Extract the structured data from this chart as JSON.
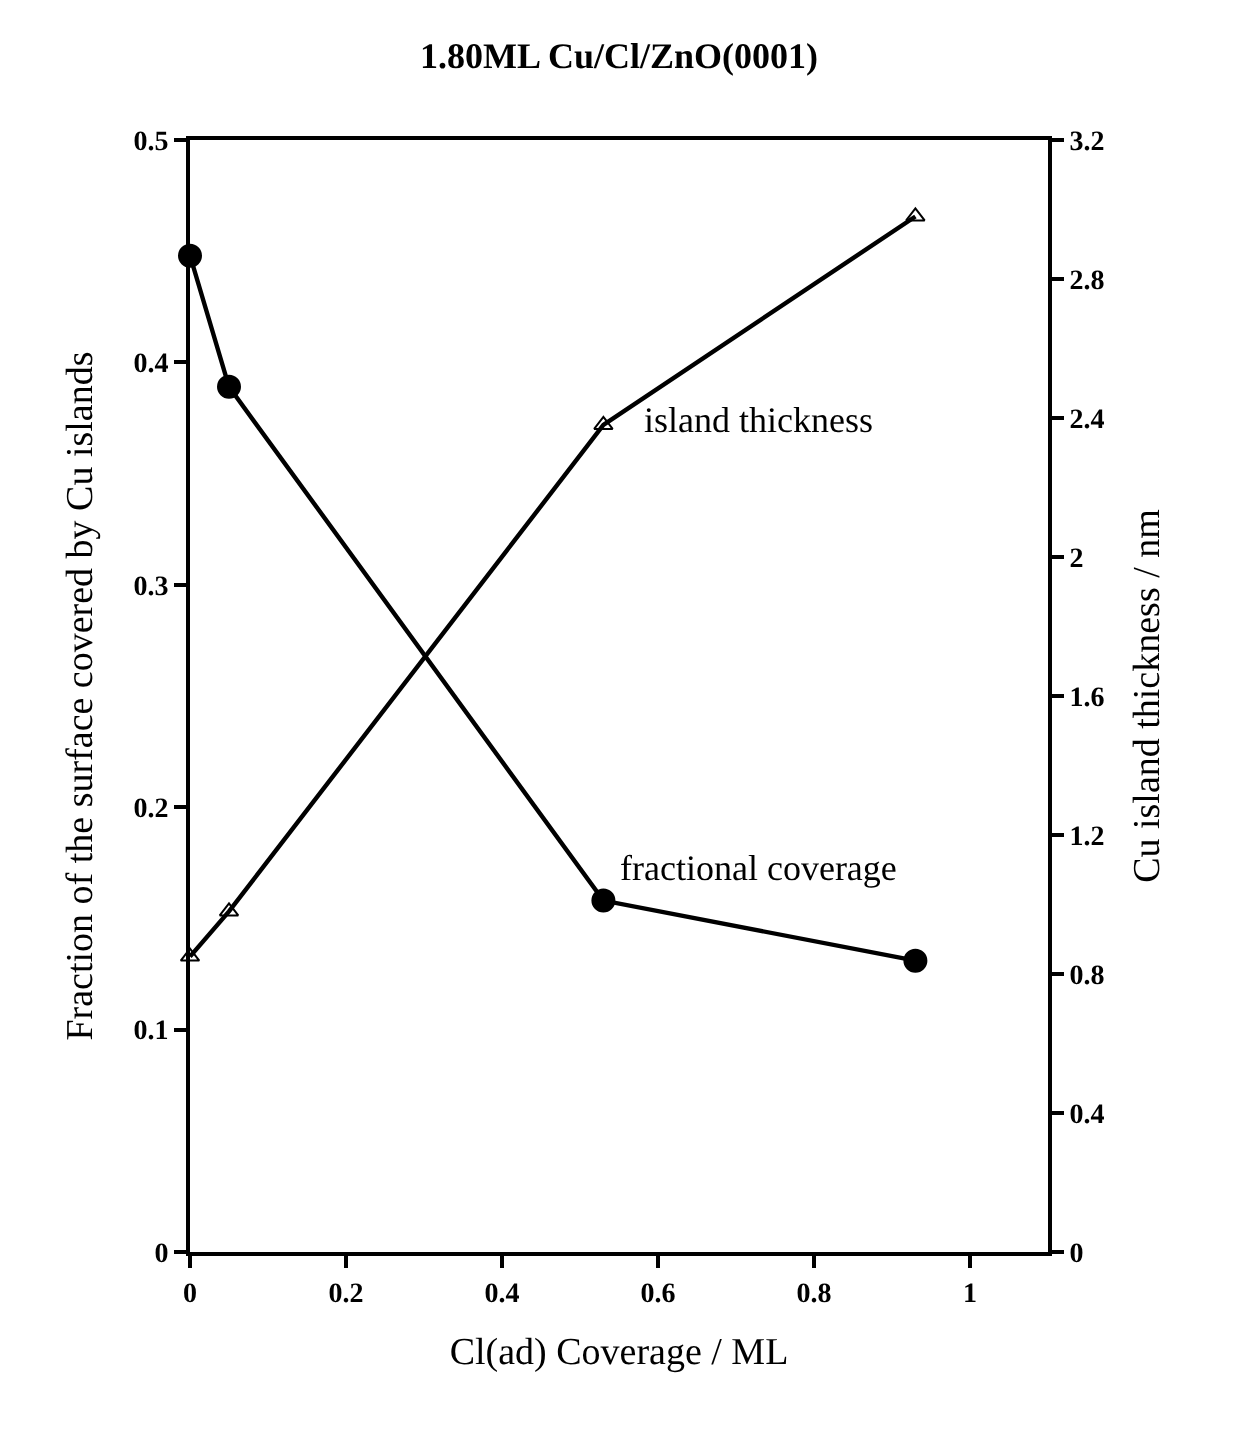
{
  "chart_data": {
    "type": "line",
    "title": "1.80ML Cu/Cl/ZnO(0001)",
    "xlabel": "Cl(ad) Coverage / ML",
    "ylabel": "Fraction of the surface covered by Cu islands",
    "y2label": "Cu island thickness / nm",
    "x": [
      0,
      0.05,
      0.53,
      0.93
    ],
    "series": [
      {
        "name": "fractional coverage",
        "color": "#000000",
        "marker": "circle",
        "values": [
          0.448,
          0.389,
          0.158,
          0.131
        ]
      },
      {
        "name": "island thickness",
        "color": "#000000",
        "marker": "triangle",
        "axis": "y2",
        "values": [
          0.85,
          0.98,
          2.38,
          2.98
        ]
      }
    ],
    "xlim": [
      0,
      1.1
    ],
    "xticks": [
      0,
      0.2,
      0.4,
      0.6,
      0.8,
      1
    ],
    "ylim": [
      0,
      0.5
    ],
    "yticks": [
      0,
      0.1,
      0.2,
      0.3,
      0.4,
      0.5
    ],
    "y2lim": [
      0,
      3.2
    ],
    "y2ticks": [
      0,
      0.4,
      0.8,
      1.2,
      1.6,
      2,
      2.4,
      2.8,
      3.2
    ],
    "line_style": "solid"
  }
}
